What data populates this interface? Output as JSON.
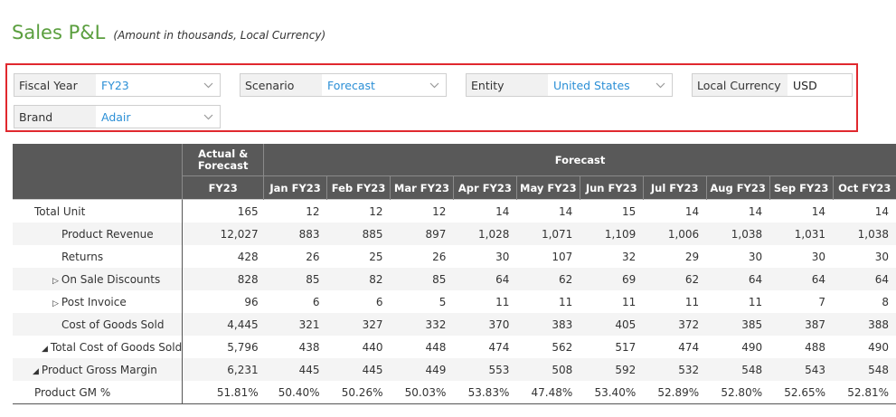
{
  "header": {
    "title": "Sales P&L",
    "subtitle": "(Amount in thousands, Local Currency)"
  },
  "filters": {
    "fiscal_year": {
      "label": "Fiscal Year",
      "value": "FY23"
    },
    "scenario": {
      "label": "Scenario",
      "value": "Forecast"
    },
    "entity": {
      "label": "Entity",
      "value": "United States"
    },
    "local_currency": {
      "label": "Local Currency",
      "value": "USD"
    },
    "brand": {
      "label": "Brand",
      "value": "Adair"
    }
  },
  "table": {
    "group_headers": {
      "actual_forecast": "Actual & Forecast",
      "forecast": "Forecast"
    },
    "columns": [
      "FY23",
      "Jan FY23",
      "Feb FY23",
      "Mar FY23",
      "Apr FY23",
      "May FY23",
      "Jun FY23",
      "Jul FY23",
      "Aug FY23",
      "Sep FY23",
      "Oct FY23"
    ],
    "rows": [
      {
        "label": "Total Unit",
        "indent": 0,
        "toggle": "",
        "values": [
          "165",
          "12",
          "12",
          "12",
          "14",
          "14",
          "15",
          "14",
          "14",
          "14",
          "14"
        ]
      },
      {
        "label": "Product Revenue",
        "indent": 2,
        "toggle": "",
        "values": [
          "12,027",
          "883",
          "885",
          "897",
          "1,028",
          "1,071",
          "1,109",
          "1,006",
          "1,038",
          "1,031",
          "1,038"
        ]
      },
      {
        "label": "Returns",
        "indent": 2,
        "toggle": "",
        "values": [
          "428",
          "26",
          "25",
          "26",
          "30",
          "107",
          "32",
          "29",
          "30",
          "30",
          "30"
        ]
      },
      {
        "label": "On Sale Discounts",
        "indent": 1,
        "toggle": "collapsed",
        "values": [
          "828",
          "85",
          "82",
          "85",
          "64",
          "62",
          "69",
          "62",
          "64",
          "64",
          "64"
        ]
      },
      {
        "label": "Post Invoice",
        "indent": 1,
        "toggle": "collapsed",
        "values": [
          "96",
          "6",
          "6",
          "5",
          "11",
          "11",
          "11",
          "11",
          "11",
          "7",
          "8"
        ]
      },
      {
        "label": "Cost of Goods Sold",
        "indent": 2,
        "toggle": "",
        "values": [
          "4,445",
          "321",
          "327",
          "332",
          "370",
          "383",
          "405",
          "372",
          "385",
          "387",
          "388"
        ]
      },
      {
        "label": "Total Cost of Goods Sold",
        "indent": 3,
        "toggle": "expanded",
        "values": [
          "5,796",
          "438",
          "440",
          "448",
          "474",
          "562",
          "517",
          "474",
          "490",
          "488",
          "490"
        ]
      },
      {
        "label": "Product Gross Margin",
        "indent": 4,
        "toggle": "expanded",
        "values": [
          "6,231",
          "445",
          "445",
          "449",
          "553",
          "508",
          "592",
          "532",
          "548",
          "543",
          "548"
        ]
      },
      {
        "label": "Product GM %",
        "indent": 0,
        "toggle": "",
        "values": [
          "51.81%",
          "50.40%",
          "50.26%",
          "50.03%",
          "53.83%",
          "47.48%",
          "53.40%",
          "52.89%",
          "52.80%",
          "52.65%",
          "52.81%"
        ]
      }
    ]
  },
  "icons": {
    "dropdown": "chevron-down-icon",
    "collapsed": "triangle-right-icon",
    "expanded": "triangle-down-left-icon"
  },
  "colors": {
    "title": "#5a9e3e",
    "accent_value": "#2b8fd6",
    "filter_border": "#e0282e",
    "header_bg": "#595959"
  }
}
